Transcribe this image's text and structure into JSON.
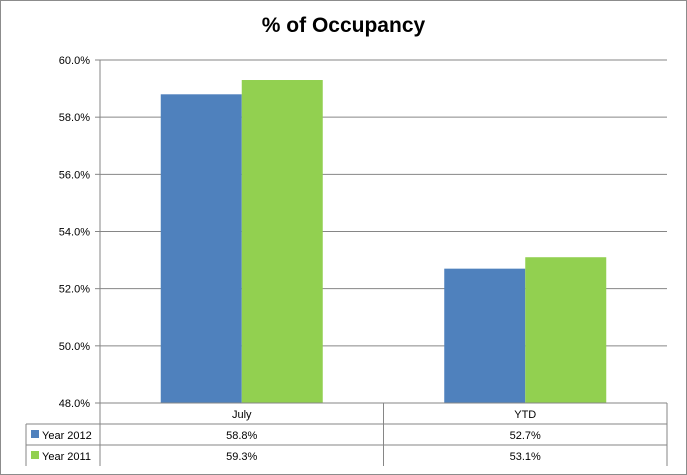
{
  "chart_data": {
    "type": "bar",
    "title": "% of Occupancy",
    "categories": [
      "July",
      "YTD"
    ],
    "series": [
      {
        "name": "Year 2012",
        "values": [
          58.8,
          52.7
        ],
        "color": "#4f81bd"
      },
      {
        "name": "Year 2011",
        "values": [
          59.3,
          53.1
        ],
        "color": "#92d050"
      }
    ],
    "ylim": [
      48.0,
      60.0
    ],
    "yticks": [
      48.0,
      50.0,
      52.0,
      54.0,
      56.0,
      58.0,
      60.0
    ],
    "ytick_labels": [
      "48.0%",
      "50.0%",
      "52.0%",
      "54.0%",
      "56.0%",
      "58.0%",
      "60.0%"
    ],
    "data_table": {
      "rows": [
        {
          "series": "Year 2012",
          "cells": [
            "58.8%",
            "52.7%"
          ]
        },
        {
          "series": "Year 2011",
          "cells": [
            "59.3%",
            "53.1%"
          ]
        }
      ]
    },
    "grid": true,
    "legend": "in data table"
  }
}
